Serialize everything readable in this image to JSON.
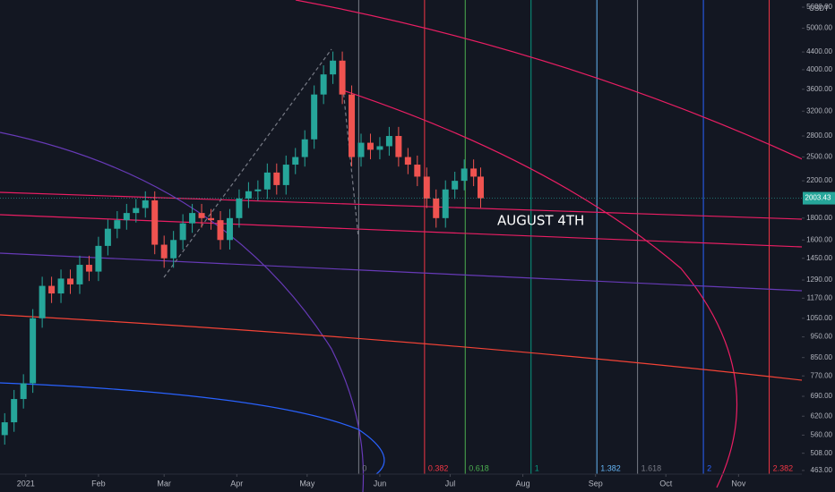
{
  "chart_data": {
    "type": "candlestick",
    "currency": "USDT",
    "log_scale": true,
    "up_color": "#26a69a",
    "down_color": "#ef5350",
    "x": [
      -9,
      -5,
      -1,
      3,
      7,
      11,
      15,
      19,
      23,
      27,
      31,
      35,
      39,
      43,
      47,
      51,
      55,
      59,
      63,
      67,
      71,
      75,
      79,
      83,
      87,
      91,
      95,
      99,
      103,
      107,
      111,
      115,
      119,
      123,
      127,
      131,
      135,
      139,
      143,
      147,
      151,
      155,
      159,
      163,
      167,
      171,
      175,
      179,
      183,
      187,
      191,
      194
    ],
    "open": [
      560,
      600,
      680,
      740,
      1050,
      1250,
      1200,
      1300,
      1260,
      1400,
      1350,
      1550,
      1700,
      1780,
      1850,
      1900,
      1980,
      1560,
      1450,
      1600,
      1750,
      1850,
      1800,
      1780,
      1600,
      1800,
      2000,
      2080,
      2100,
      2300,
      2150,
      2400,
      2500,
      2750,
      3500,
      3900,
      4200,
      3500,
      2500,
      2700,
      2600,
      2650,
      2800,
      2500,
      2400,
      2250,
      2000,
      1800,
      2100,
      2200,
      2350,
      2250
    ],
    "high": [
      630,
      714,
      777,
      1103,
      1313,
      1313,
      1365,
      1365,
      1470,
      1470,
      1628,
      1785,
      1869,
      1943,
      1995,
      2079,
      2079,
      1638,
      1680,
      1838,
      1943,
      1943,
      1890,
      1869,
      1890,
      2100,
      2184,
      2205,
      2415,
      2415,
      2520,
      2625,
      2888,
      3675,
      4095,
      4410,
      4410,
      3675,
      2835,
      2835,
      2783,
      2940,
      2940,
      2625,
      2520,
      2363,
      2100,
      2205,
      2310,
      2468,
      2468,
      2363
    ],
    "low": [
      532,
      570,
      646,
      703,
      998,
      1140,
      1140,
      1197,
      1197,
      1283,
      1283,
      1473,
      1615,
      1691,
      1758,
      1805,
      1482,
      1378,
      1378,
      1520,
      1663,
      1710,
      1691,
      1520,
      1520,
      1710,
      1900,
      1976,
      1995,
      2043,
      2043,
      2280,
      2375,
      2613,
      3325,
      3705,
      3325,
      2375,
      2375,
      2470,
      2470,
      2518,
      2375,
      2280,
      2138,
      1900,
      1710,
      1710,
      1995,
      2090,
      2138,
      1903
    ],
    "close": [
      600,
      680,
      740,
      1050,
      1250,
      1200,
      1300,
      1260,
      1400,
      1350,
      1550,
      1700,
      1780,
      1850,
      1900,
      1980,
      1560,
      1450,
      1600,
      1750,
      1850,
      1800,
      1780,
      1600,
      1800,
      2000,
      2080,
      2100,
      2300,
      2150,
      2400,
      2500,
      2750,
      3500,
      3900,
      4200,
      3500,
      2500,
      2700,
      2600,
      2650,
      2800,
      2500,
      2400,
      2250,
      2000,
      1800,
      2100,
      2200,
      2350,
      2250,
      2003.43
    ],
    "last_price_label": "2003.43",
    "xlim": [
      -11,
      331
    ],
    "xticks": [
      {
        "value": 0,
        "label": "2021"
      },
      {
        "value": 31,
        "label": "Feb"
      },
      {
        "value": 59,
        "label": "Mar"
      },
      {
        "value": 90,
        "label": "Apr"
      },
      {
        "value": 120,
        "label": "May"
      },
      {
        "value": 151,
        "label": "Jun"
      },
      {
        "value": 181,
        "label": "Jul"
      },
      {
        "value": 212,
        "label": "Aug"
      },
      {
        "value": 243,
        "label": "Sep"
      },
      {
        "value": 273,
        "label": "Oct"
      },
      {
        "value": 304,
        "label": "Nov"
      }
    ],
    "ylim": [
      454,
      5820
    ],
    "yticks": [
      {
        "value": 463,
        "label": "463.00"
      },
      {
        "value": 508,
        "label": "508.00"
      },
      {
        "value": 560,
        "label": "560.00"
      },
      {
        "value": 620,
        "label": "620.00"
      },
      {
        "value": 690,
        "label": "690.00"
      },
      {
        "value": 770,
        "label": "770.00"
      },
      {
        "value": 850,
        "label": "850.00"
      },
      {
        "value": 950,
        "label": "950.00"
      },
      {
        "value": 1050,
        "label": "1050.00"
      },
      {
        "value": 1170,
        "label": "1170.00"
      },
      {
        "value": 1290,
        "label": "1290.00"
      },
      {
        "value": 1450,
        "label": "1450.00"
      },
      {
        "value": 1600,
        "label": "1600.00"
      },
      {
        "value": 1800,
        "label": "1800.00"
      },
      {
        "value": 2200,
        "label": "2200.00"
      },
      {
        "value": 2500,
        "label": "2500.00"
      },
      {
        "value": 2800,
        "label": "2800.00"
      },
      {
        "value": 3200,
        "label": "3200.00"
      },
      {
        "value": 3600,
        "label": "3600.00"
      },
      {
        "value": 4000,
        "label": "4000.00"
      },
      {
        "value": 4400,
        "label": "4400.00"
      },
      {
        "value": 5000,
        "label": "5000.00"
      },
      {
        "value": 5600,
        "label": "5600.00"
      }
    ],
    "fib_time_zone": {
      "start": 142,
      "end": 215.5,
      "levels": [
        0,
        0.382,
        0.618,
        1,
        1.382,
        1.618,
        2,
        2.382
      ],
      "level_colors": [
        "#787b86",
        "#f23645",
        "#4caf50",
        "#089981",
        "#64b5f6",
        "#787b86",
        "#2962ff",
        "#f23645"
      ]
    },
    "annotation": "AUGUST 4TH"
  }
}
